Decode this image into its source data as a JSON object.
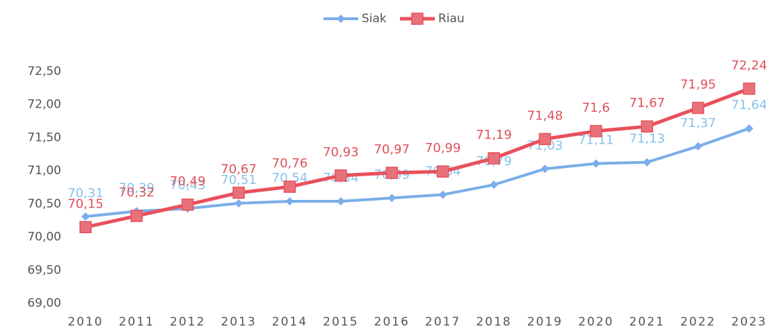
{
  "chart_data": {
    "type": "line",
    "categories": [
      "2010",
      "2011",
      "2012",
      "2013",
      "2014",
      "2015",
      "2016",
      "2017",
      "2018",
      "2019",
      "2020",
      "2021",
      "2022",
      "2023"
    ],
    "series": [
      {
        "name": "Siak",
        "color": "#7aaee8",
        "label_color": "#86c2ec",
        "marker": "diamond",
        "values": [
          70.31,
          70.39,
          70.43,
          70.51,
          70.54,
          70.54,
          70.59,
          70.64,
          70.79,
          71.03,
          71.11,
          71.13,
          71.37,
          71.64
        ],
        "value_labels": [
          "70,31",
          "70,39",
          "70,43",
          "70,51",
          "70,54",
          "70,54",
          "70,59",
          "70,64",
          "70,79",
          "71,03",
          "71,11",
          "71,13",
          "71,37",
          "71,64"
        ]
      },
      {
        "name": "Riau",
        "color": "#e8505b",
        "label_color": "#e0505a",
        "marker": "square",
        "values": [
          70.15,
          70.32,
          70.49,
          70.67,
          70.76,
          70.93,
          70.97,
          70.99,
          71.19,
          71.48,
          71.6,
          71.67,
          71.95,
          72.24
        ],
        "value_labels": [
          "70,15",
          "70,32",
          "70,49",
          "70,67",
          "70,76",
          "70,93",
          "70,97",
          "70,99",
          "71,19",
          "71,48",
          "71,6",
          "71,67",
          "71,95",
          "72,24"
        ]
      }
    ],
    "ylim": [
      69,
      72.5
    ],
    "yticks": [
      {
        "value": 69,
        "label": "69,00"
      },
      {
        "value": 69.5,
        "label": "69,50"
      },
      {
        "value": 70,
        "label": "70,00"
      },
      {
        "value": 70.5,
        "label": "70,50"
      },
      {
        "value": 71,
        "label": "71,00"
      },
      {
        "value": 71.5,
        "label": "71,50"
      },
      {
        "value": 72,
        "label": "72,00"
      },
      {
        "value": 72.5,
        "label": "72,50"
      }
    ],
    "grid": false,
    "legend": "top"
  }
}
